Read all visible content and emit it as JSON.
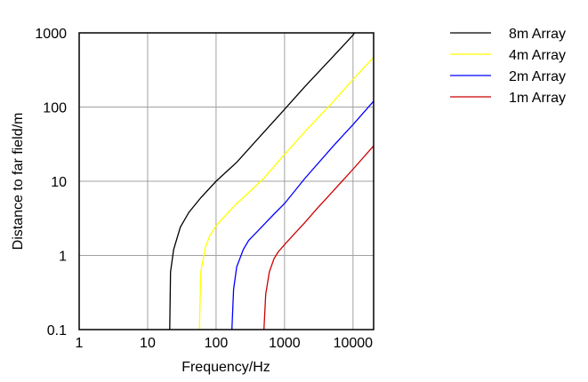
{
  "chart_data": {
    "type": "line",
    "xlabel": "Frequency/Hz",
    "ylabel": "Distance to far field/m",
    "xscale": "log",
    "yscale": "log",
    "xlim": [
      1,
      20000
    ],
    "ylim": [
      0.1,
      1000
    ],
    "grid": true,
    "legend_position": "top-right",
    "x_ticks": [
      "1",
      "10",
      "100",
      "1000",
      "10000"
    ],
    "y_ticks": [
      "0.1",
      "1",
      "10",
      "100",
      "1000"
    ],
    "series": [
      {
        "name": "8m Array",
        "color": "#000000",
        "x": [
          21,
          21.6,
          24,
          30,
          40,
          60,
          100,
          200,
          500,
          1000,
          2000,
          5000,
          10000,
          10500
        ],
        "y": [
          0.1,
          0.6,
          1.2,
          2.4,
          3.8,
          6,
          10,
          18,
          46,
          93,
          190,
          470,
          930,
          1000
        ]
      },
      {
        "name": "4m Array",
        "color": "#ffff00",
        "x": [
          57,
          60,
          70,
          80,
          100,
          150,
          200,
          300,
          500,
          1000,
          2000,
          5000,
          10000,
          20000
        ],
        "y": [
          0.1,
          0.6,
          1.3,
          1.8,
          2.5,
          3.8,
          5,
          7,
          11,
          23,
          47,
          115,
          235,
          470
        ]
      },
      {
        "name": "2m Array",
        "color": "#0000ff",
        "x": [
          170,
          180,
          200,
          250,
          300,
          400,
          500,
          700,
          1000,
          2000,
          5000,
          10000,
          20000
        ],
        "y": [
          0.1,
          0.35,
          0.7,
          1.2,
          1.6,
          2.1,
          2.6,
          3.6,
          5,
          11,
          29,
          58,
          120
        ]
      },
      {
        "name": "1m Array",
        "color": "#cc0000",
        "x": [
          500,
          530,
          600,
          700,
          800,
          1000,
          1500,
          2000,
          3000,
          5000,
          10000,
          20000
        ],
        "y": [
          0.1,
          0.3,
          0.6,
          0.9,
          1.1,
          1.4,
          2.1,
          2.8,
          4.3,
          7.2,
          14.5,
          30
        ]
      }
    ]
  }
}
